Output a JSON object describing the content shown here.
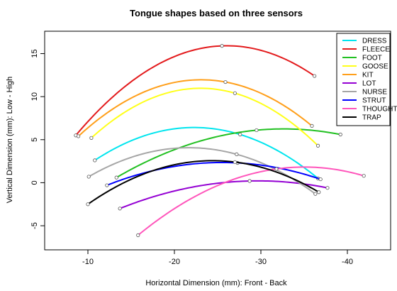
{
  "chart_data": {
    "type": "line",
    "title": "Tongue shapes based on three sensors",
    "xlabel": "Horizontal Dimension (mm): Front - Back",
    "ylabel": "Vertical Dimension (mm): Low - High",
    "x_reversed": true,
    "xlim": [
      -5,
      -45
    ],
    "ylim": [
      -7.8,
      17.6
    ],
    "xticks": [
      -10,
      -20,
      -30,
      -40
    ],
    "xtick_labels": [
      "-10",
      "-20",
      "-30",
      "-40"
    ],
    "yticks": [
      -5,
      0,
      5,
      10,
      15
    ],
    "ytick_labels": [
      "-5",
      "0",
      "5",
      "10",
      "15"
    ],
    "grid": false,
    "legend_position": "top-right",
    "series": [
      {
        "name": "DRESS",
        "color": "#00e5ee",
        "points": [
          [
            -10.8,
            2.6
          ],
          [
            -27.6,
            5.6
          ],
          [
            -36.6,
            0.5
          ]
        ]
      },
      {
        "name": "FLEECE",
        "color": "#e31a1c",
        "points": [
          [
            -8.6,
            5.5
          ],
          [
            -25.5,
            15.9
          ],
          [
            -36.2,
            12.4
          ]
        ]
      },
      {
        "name": "FOOT",
        "color": "#22c022",
        "points": [
          [
            -13.3,
            0.6
          ],
          [
            -29.5,
            6.1
          ],
          [
            -39.2,
            5.6
          ]
        ]
      },
      {
        "name": "GOOSE",
        "color": "#ffff1a",
        "points": [
          [
            -10.4,
            5.2
          ],
          [
            -27.0,
            10.4
          ],
          [
            -36.6,
            4.3
          ]
        ]
      },
      {
        "name": "KIT",
        "color": "#ff9f1a",
        "points": [
          [
            -8.9,
            5.4
          ],
          [
            -25.9,
            11.7
          ],
          [
            -35.9,
            6.6
          ]
        ]
      },
      {
        "name": "LOT",
        "color": "#9400d3",
        "points": [
          [
            -13.7,
            -3.0
          ],
          [
            -28.7,
            0.2
          ],
          [
            -37.7,
            -0.6
          ]
        ]
      },
      {
        "name": "NURSE",
        "color": "#a6a6a6",
        "points": [
          [
            -10.1,
            0.7
          ],
          [
            -27.2,
            3.3
          ],
          [
            -36.3,
            -1.3
          ]
        ]
      },
      {
        "name": "STRUT",
        "color": "#0000ff",
        "points": [
          [
            -12.2,
            -0.3
          ],
          [
            -27.3,
            2.3
          ],
          [
            -36.9,
            0.4
          ]
        ]
      },
      {
        "name": "THOUGHT",
        "color": "#ff55bb",
        "points": [
          [
            -15.8,
            -6.1
          ],
          [
            -31.8,
            1.6
          ],
          [
            -41.9,
            0.8
          ]
        ]
      },
      {
        "name": "TRAP",
        "color": "#000000",
        "points": [
          [
            -10.0,
            -2.5
          ],
          [
            -27.0,
            2.4
          ],
          [
            -36.7,
            -1.1
          ]
        ]
      }
    ]
  }
}
